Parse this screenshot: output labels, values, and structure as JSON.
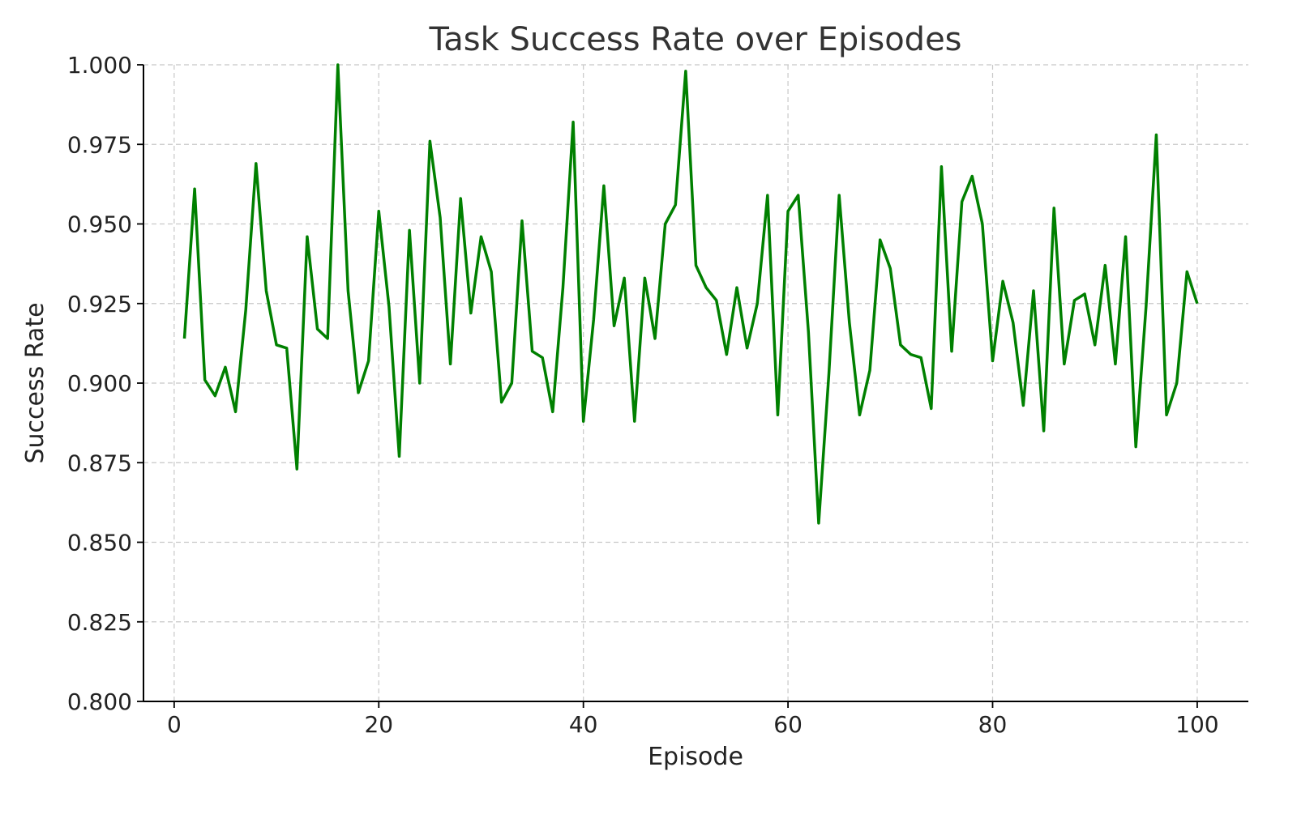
{
  "chart_data": {
    "type": "line",
    "title": "Task Success Rate over Episodes",
    "xlabel": "Episode",
    "ylabel": "Success Rate",
    "xlim": [
      -3,
      105
    ],
    "ylim": [
      0.8,
      1.0
    ],
    "xticks": [
      0,
      20,
      40,
      60,
      80,
      100
    ],
    "yticks": [
      0.8,
      0.825,
      0.85,
      0.875,
      0.9,
      0.925,
      0.95,
      0.975,
      1.0
    ],
    "xtick_labels": [
      "0",
      "20",
      "40",
      "60",
      "80",
      "100"
    ],
    "ytick_labels": [
      "0.800",
      "0.825",
      "0.850",
      "0.875",
      "0.900",
      "0.925",
      "0.950",
      "0.975",
      "1.000"
    ],
    "grid": true,
    "legend": "none",
    "series": [
      {
        "color": "#008000",
        "x": [
          1,
          2,
          3,
          4,
          5,
          6,
          7,
          8,
          9,
          10,
          11,
          12,
          13,
          14,
          15,
          16,
          17,
          18,
          19,
          20,
          21,
          22,
          23,
          24,
          25,
          26,
          27,
          28,
          29,
          30,
          31,
          32,
          33,
          34,
          35,
          36,
          37,
          38,
          39,
          40,
          41,
          42,
          43,
          44,
          45,
          46,
          47,
          48,
          49,
          50,
          51,
          52,
          53,
          54,
          55,
          56,
          57,
          58,
          59,
          60,
          61,
          62,
          63,
          64,
          65,
          66,
          67,
          68,
          69,
          70,
          71,
          72,
          73,
          74,
          75,
          76,
          77,
          78,
          79,
          80,
          81,
          82,
          83,
          84,
          85,
          86,
          87,
          88,
          89,
          90,
          91,
          92,
          93,
          94,
          95,
          96,
          97,
          98,
          99,
          100
        ],
        "values": [
          0.914,
          0.961,
          0.901,
          0.896,
          0.905,
          0.891,
          0.923,
          0.969,
          0.929,
          0.912,
          0.911,
          0.873,
          0.946,
          0.917,
          0.914,
          1.0,
          0.929,
          0.897,
          0.907,
          0.954,
          0.924,
          0.877,
          0.948,
          0.9,
          0.976,
          0.952,
          0.906,
          0.958,
          0.922,
          0.946,
          0.935,
          0.894,
          0.9,
          0.951,
          0.91,
          0.908,
          0.891,
          0.93,
          0.982,
          0.888,
          0.92,
          0.962,
          0.918,
          0.933,
          0.888,
          0.933,
          0.914,
          0.95,
          0.956,
          0.998,
          0.937,
          0.93,
          0.926,
          0.909,
          0.93,
          0.911,
          0.925,
          0.959,
          0.89,
          0.954,
          0.959,
          0.916,
          0.856,
          0.903,
          0.959,
          0.919,
          0.89,
          0.904,
          0.945,
          0.936,
          0.912,
          0.909,
          0.908,
          0.892,
          0.968,
          0.91,
          0.957,
          0.965,
          0.95,
          0.907,
          0.932,
          0.919,
          0.893,
          0.929,
          0.885,
          0.955,
          0.906,
          0.926,
          0.928,
          0.912,
          0.937,
          0.906,
          0.946,
          0.88,
          0.924,
          0.978,
          0.89,
          0.9,
          0.935,
          0.925
        ]
      }
    ]
  }
}
